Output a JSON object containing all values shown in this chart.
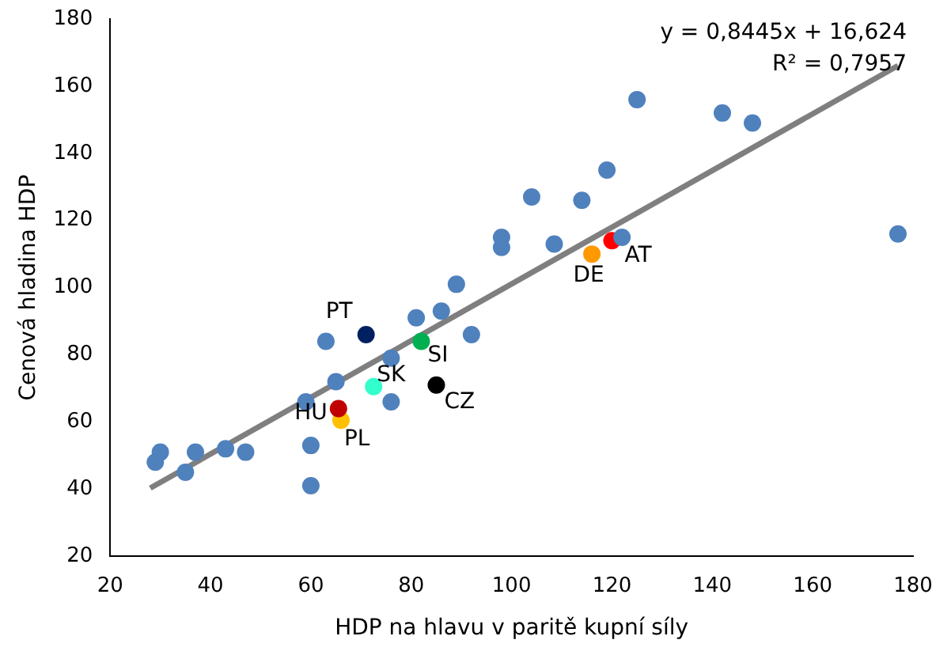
{
  "chart_data": {
    "type": "scatter",
    "xlabel": "HDP na hlavu v paritě kupní síly",
    "ylabel": "Cenová hladina HDP",
    "xlim": [
      20,
      180
    ],
    "xticks": [
      20,
      40,
      60,
      80,
      100,
      120,
      140,
      160,
      180
    ],
    "ylim": [
      20,
      180
    ],
    "yticks": [
      20,
      40,
      60,
      80,
      100,
      120,
      140,
      160,
      180
    ],
    "grid": false,
    "legend": false,
    "annotations": [
      "y = 0,8445x + 16,624",
      "R² = 0,7957"
    ],
    "series": [
      {
        "color": "#4f81bd",
        "marker": "circle",
        "x": [
          29,
          30,
          35,
          37,
          43,
          47,
          60,
          60,
          59,
          63,
          65,
          76,
          76,
          81,
          86,
          89,
          92,
          98,
          98,
          104,
          108.5,
          114,
          119,
          122,
          125,
          142,
          148,
          177
        ],
        "values": [
          48,
          51,
          45,
          51,
          52,
          51,
          53,
          41,
          66,
          84,
          72,
          66,
          79,
          91,
          93,
          101,
          86,
          112,
          115,
          127,
          113,
          126,
          135,
          115,
          156,
          152,
          149,
          116
        ]
      },
      {
        "name": "PT",
        "color": "#002060",
        "x": [
          71
        ],
        "values": [
          86
        ]
      },
      {
        "name": "HU",
        "color": "#c00000",
        "x": [
          65.5
        ],
        "values": [
          64
        ]
      },
      {
        "name": "PL",
        "color": "#ffc000",
        "x": [
          66
        ],
        "values": [
          60.5
        ]
      },
      {
        "name": "SK",
        "color": "#33ffcc",
        "x": [
          72.5
        ],
        "values": [
          70.5
        ]
      },
      {
        "name": "SI",
        "color": "#00b050",
        "x": [
          82
        ],
        "values": [
          84
        ]
      },
      {
        "name": "CZ",
        "color": "#000000",
        "x": [
          85
        ],
        "values": [
          71
        ]
      },
      {
        "name": "DE",
        "color": "#ff9900",
        "x": [
          116
        ],
        "values": [
          110
        ]
      },
      {
        "name": "AT",
        "color": "#ff0000",
        "x": [
          120
        ],
        "values": [
          114
        ]
      },
      {
        "type": "line",
        "marker": "none",
        "color": "#7f7f7f",
        "x": [
          28,
          177
        ],
        "values": [
          40.3,
          166.1
        ]
      }
    ]
  }
}
